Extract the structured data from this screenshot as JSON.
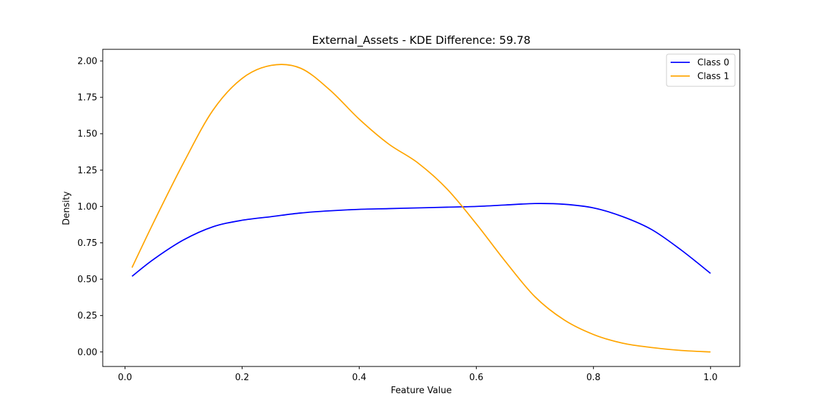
{
  "chart_data": {
    "type": "line",
    "title": "External_Assets - KDE Difference: 59.78",
    "xlabel": "Feature Value",
    "ylabel": "Density",
    "xlim": [
      -0.038,
      1.05
    ],
    "ylim": [
      -0.1,
      2.08
    ],
    "xticks": [
      0.0,
      0.2,
      0.4,
      0.6,
      0.8,
      1.0
    ],
    "xtick_labels": [
      "0.0",
      "0.2",
      "0.4",
      "0.6",
      "0.8",
      "1.0"
    ],
    "yticks": [
      0.0,
      0.25,
      0.5,
      0.75,
      1.0,
      1.25,
      1.5,
      1.75,
      2.0
    ],
    "ytick_labels": [
      "0.00",
      "0.25",
      "0.50",
      "0.75",
      "1.00",
      "1.25",
      "1.50",
      "1.75",
      "2.00"
    ],
    "grid": false,
    "legend_position": "top-right",
    "series": [
      {
        "name": "Class 0",
        "color": "#0000ff",
        "x": [
          0.012,
          0.05,
          0.1,
          0.15,
          0.2,
          0.25,
          0.3,
          0.35,
          0.4,
          0.45,
          0.5,
          0.55,
          0.6,
          0.65,
          0.7,
          0.75,
          0.8,
          0.85,
          0.9,
          0.95,
          1.0
        ],
        "y": [
          0.52,
          0.64,
          0.77,
          0.86,
          0.905,
          0.93,
          0.955,
          0.97,
          0.98,
          0.985,
          0.99,
          0.995,
          1.0,
          1.01,
          1.02,
          1.015,
          0.99,
          0.93,
          0.84,
          0.7,
          0.54
        ]
      },
      {
        "name": "Class 1",
        "color": "#ffa500",
        "x": [
          0.012,
          0.05,
          0.1,
          0.15,
          0.2,
          0.25,
          0.3,
          0.35,
          0.4,
          0.45,
          0.5,
          0.55,
          0.6,
          0.65,
          0.7,
          0.75,
          0.8,
          0.85,
          0.9,
          0.95,
          1.0
        ],
        "y": [
          0.58,
          0.9,
          1.3,
          1.66,
          1.88,
          1.97,
          1.95,
          1.8,
          1.6,
          1.43,
          1.3,
          1.12,
          0.88,
          0.62,
          0.38,
          0.22,
          0.12,
          0.06,
          0.03,
          0.01,
          0.0
        ]
      }
    ]
  }
}
